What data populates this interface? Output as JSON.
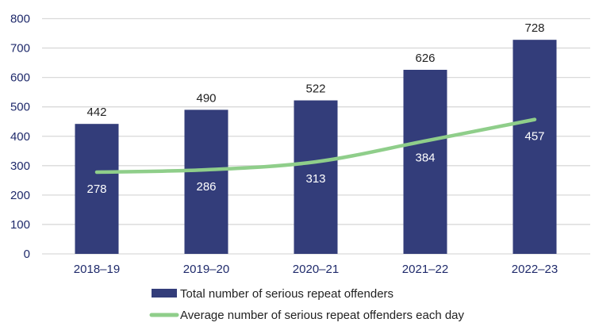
{
  "chart_data": {
    "type": "bar",
    "categories": [
      "2018–19",
      "2019–20",
      "2020–21",
      "2021–22",
      "2022–23"
    ],
    "series": [
      {
        "name": "Total number of serious repeat offenders",
        "type": "bar",
        "values": [
          442,
          490,
          522,
          626,
          728
        ],
        "color": "#333d7a"
      },
      {
        "name": "Average number of serious repeat offenders each day",
        "type": "line",
        "values": [
          278,
          286,
          313,
          384,
          457
        ],
        "color": "#8fce8a"
      }
    ],
    "ylim": [
      0,
      800
    ],
    "yticks": [
      0,
      100,
      200,
      300,
      400,
      500,
      600,
      700,
      800
    ],
    "grid": true,
    "legend": "bottom",
    "title": "",
    "xlabel": "",
    "ylabel": ""
  }
}
